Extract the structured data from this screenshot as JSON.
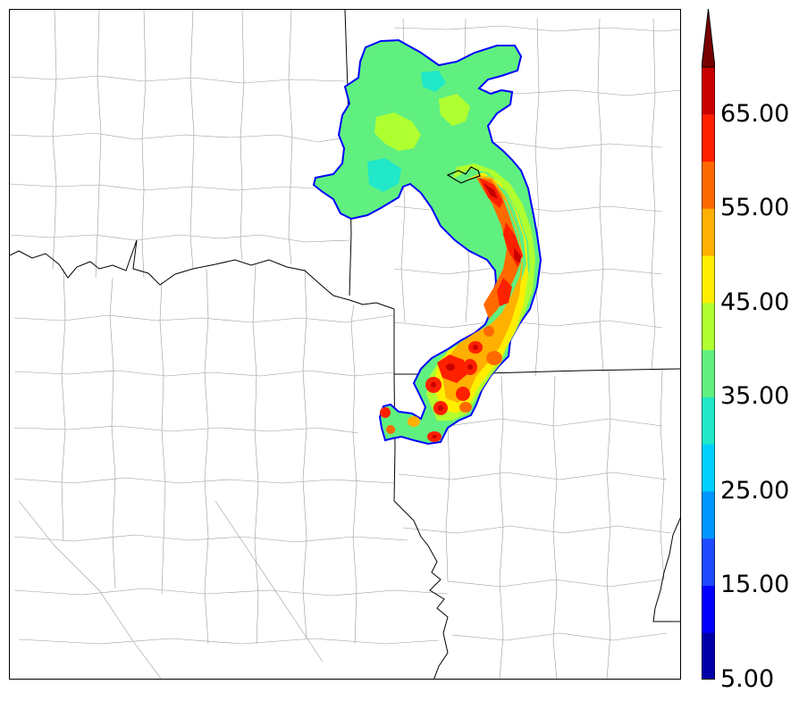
{
  "colorbar": {
    "levels": [
      5,
      10,
      15,
      20,
      25,
      30,
      35,
      40,
      45,
      50,
      55,
      60,
      65,
      70
    ],
    "colors": [
      "#0000a8",
      "#0000ff",
      "#1e4bff",
      "#0096ff",
      "#00d0ff",
      "#20e8c8",
      "#60f080",
      "#b0ff30",
      "#ffee00",
      "#ffb000",
      "#ff6a00",
      "#ff2000",
      "#c80000",
      "#7a0000"
    ],
    "tick_labels": [
      "5.00",
      "15.00",
      "25.00",
      "35.00",
      "45.00",
      "55.00",
      "65.00"
    ],
    "extend": "max"
  },
  "map": {
    "background": "#ffffff",
    "state_border_color": "#000000",
    "county_border_color": "#9a9a9a"
  },
  "storm": {
    "outline_color": "#0000ff",
    "base_color": "#60f080"
  }
}
